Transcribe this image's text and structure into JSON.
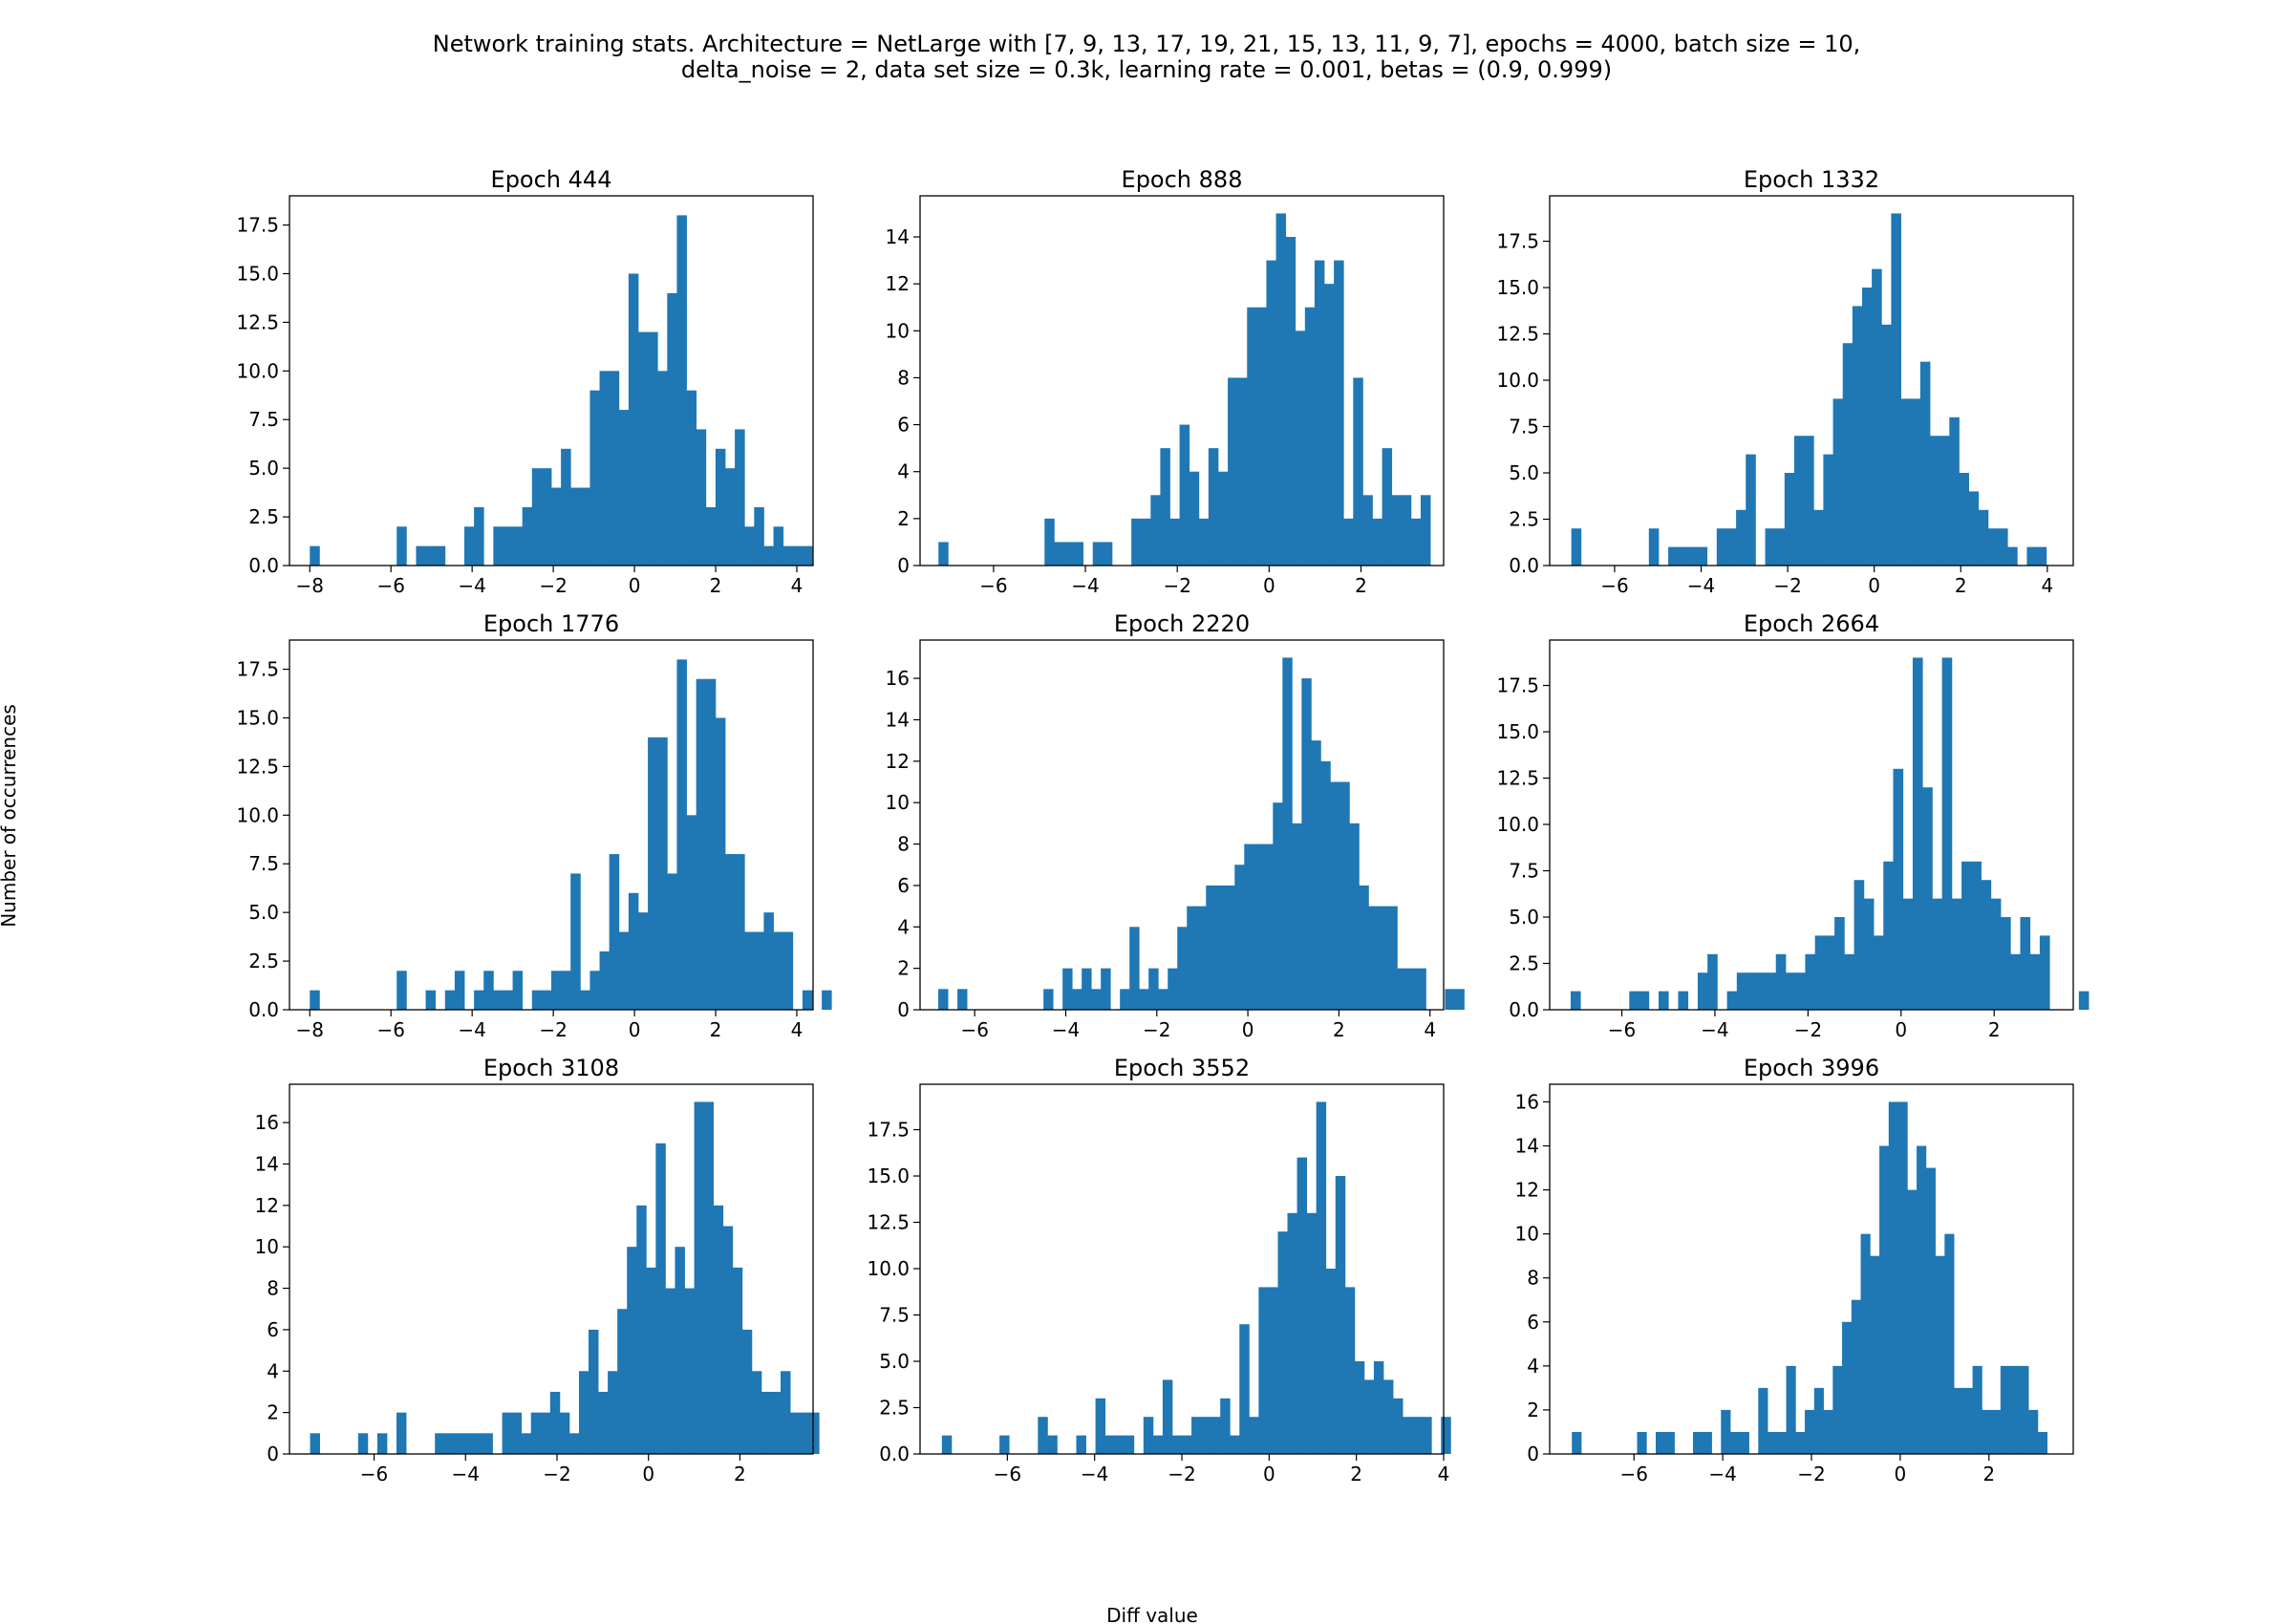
{
  "figure": {
    "title_line1": "Network training stats. Architecture = NetLarge with [7, 9, 13, 17, 19, 21, 15, 13, 11, 9, 7], epochs = 4000, batch size = 10,",
    "title_line2": "delta_noise = 2, data set size = 0.3k, learning rate = 0.001, betas = (0.9, 0.999)",
    "xlabel": "Diff value",
    "ylabel": "Number of occurrences",
    "bar_color": "#1f77b4"
  },
  "chart_data": [
    {
      "type": "bar",
      "title": "Epoch 444",
      "xlim": [
        -8.5,
        4.4
      ],
      "ylim": [
        0,
        19
      ],
      "xticks": [
        -8,
        -6,
        -4,
        -2,
        0,
        2,
        4
      ],
      "yticks": [
        0.0,
        2.5,
        5.0,
        7.5,
        10.0,
        12.5,
        15.0,
        17.5
      ],
      "ytick_labels": [
        "0.0",
        "2.5",
        "5.0",
        "7.5",
        "10.0",
        "12.5",
        "15.0",
        "17.5"
      ],
      "bin_start": -8.0,
      "bin_width": 0.238,
      "counts": [
        1,
        0,
        0,
        0,
        0,
        0,
        0,
        0,
        0,
        2,
        0,
        1,
        1,
        1,
        0,
        0,
        2,
        3,
        0,
        2,
        2,
        2,
        3,
        5,
        5,
        4,
        6,
        4,
        4,
        9,
        10,
        10,
        8,
        15,
        12,
        12,
        10,
        14,
        18,
        9,
        7,
        3,
        6,
        5,
        7,
        2,
        3,
        1,
        2,
        1,
        1,
        1
      ]
    },
    {
      "type": "bar",
      "title": "Epoch 888",
      "xlim": [
        -7.6,
        3.8
      ],
      "ylim": [
        0,
        15.75
      ],
      "xticks": [
        -6,
        -4,
        -2,
        0,
        2
      ],
      "yticks": [
        0,
        2,
        4,
        6,
        8,
        10,
        12,
        14
      ],
      "ytick_labels": [
        "0",
        "2",
        "4",
        "6",
        "8",
        "10",
        "12",
        "14"
      ],
      "bin_start": -7.2,
      "bin_width": 0.21,
      "counts": [
        1,
        0,
        0,
        0,
        0,
        0,
        0,
        0,
        0,
        0,
        0,
        2,
        1,
        1,
        1,
        0,
        1,
        1,
        0,
        0,
        2,
        2,
        3,
        5,
        2,
        6,
        4,
        2,
        5,
        4,
        8,
        8,
        11,
        11,
        13,
        15,
        14,
        10,
        11,
        13,
        12,
        13,
        2,
        8,
        3,
        2,
        5,
        3,
        3,
        2,
        3
      ]
    },
    {
      "type": "bar",
      "title": "Epoch 1332",
      "xlim": [
        -7.5,
        4.6
      ],
      "ylim": [
        0,
        19.95
      ],
      "xticks": [
        -6,
        -4,
        -2,
        0,
        2,
        4
      ],
      "yticks": [
        0.0,
        2.5,
        5.0,
        7.5,
        10.0,
        12.5,
        15.0,
        17.5
      ],
      "ytick_labels": [
        "0.0",
        "2.5",
        "5.0",
        "7.5",
        "10.0",
        "12.5",
        "15.0",
        "17.5"
      ],
      "bin_start": -7.0,
      "bin_width": 0.224,
      "counts": [
        2,
        0,
        0,
        0,
        0,
        0,
        0,
        0,
        2,
        0,
        1,
        1,
        1,
        1,
        0,
        2,
        2,
        3,
        6,
        0,
        2,
        2,
        5,
        7,
        7,
        3,
        6,
        9,
        12,
        14,
        15,
        16,
        13,
        19,
        9,
        9,
        11,
        7,
        7,
        8,
        5,
        4,
        3,
        2,
        2,
        1,
        0,
        1,
        1
      ]
    },
    {
      "type": "bar",
      "title": "Epoch 1776",
      "xlim": [
        -8.5,
        4.4
      ],
      "ylim": [
        0,
        19
      ],
      "xticks": [
        -8,
        -6,
        -4,
        -2,
        0,
        2,
        4
      ],
      "yticks": [
        0.0,
        2.5,
        5.0,
        7.5,
        10.0,
        12.5,
        15.0,
        17.5
      ],
      "ytick_labels": [
        "0.0",
        "2.5",
        "5.0",
        "7.5",
        "10.0",
        "12.5",
        "15.0",
        "17.5"
      ],
      "bin_start": -8.0,
      "bin_width": 0.238,
      "counts": [
        1,
        0,
        0,
        0,
        0,
        0,
        0,
        0,
        0,
        2,
        0,
        0,
        1,
        0,
        1,
        2,
        0,
        1,
        2,
        1,
        1,
        2,
        0,
        1,
        1,
        2,
        2,
        7,
        1,
        2,
        3,
        8,
        4,
        6,
        5,
        14,
        14,
        7,
        18,
        10,
        17,
        17,
        15,
        8,
        8,
        4,
        4,
        5,
        4,
        4,
        0,
        1,
        0,
        1
      ]
    },
    {
      "type": "bar",
      "title": "Epoch 2220",
      "xlim": [
        -7.2,
        4.3
      ],
      "ylim": [
        0,
        17.85
      ],
      "xticks": [
        -6,
        -4,
        -2,
        0,
        2,
        4
      ],
      "yticks": [
        0,
        2,
        4,
        6,
        8,
        10,
        12,
        14,
        16
      ],
      "ytick_labels": [
        "0",
        "2",
        "4",
        "6",
        "8",
        "10",
        "12",
        "14",
        "16"
      ],
      "bin_start": -6.8,
      "bin_width": 0.21,
      "counts": [
        1,
        0,
        1,
        0,
        0,
        0,
        0,
        0,
        0,
        0,
        0,
        1,
        0,
        2,
        1,
        2,
        1,
        2,
        0,
        1,
        4,
        1,
        2,
        1,
        2,
        4,
        5,
        5,
        6,
        6,
        6,
        7,
        8,
        8,
        8,
        10,
        17,
        9,
        16,
        13,
        12,
        11,
        11,
        9,
        6,
        5,
        5,
        5,
        2,
        2,
        2,
        0,
        0,
        1,
        1
      ]
    },
    {
      "type": "bar",
      "title": "Epoch 2664",
      "xlim": [
        -7.55,
        3.7
      ],
      "ylim": [
        0,
        19.95
      ],
      "xticks": [
        -6,
        -4,
        -2,
        0,
        2
      ],
      "yticks": [
        0.0,
        2.5,
        5.0,
        7.5,
        10.0,
        12.5,
        15.0,
        17.5
      ],
      "ytick_labels": [
        "0.0",
        "2.5",
        "5.0",
        "7.5",
        "10.0",
        "12.5",
        "15.0",
        "17.5"
      ],
      "bin_start": -7.1,
      "bin_width": 0.21,
      "counts": [
        1,
        0,
        0,
        0,
        0,
        0,
        1,
        1,
        0,
        1,
        0,
        1,
        0,
        2,
        3,
        0,
        1,
        2,
        2,
        2,
        2,
        3,
        2,
        2,
        3,
        4,
        4,
        5,
        3,
        7,
        6,
        4,
        8,
        13,
        6,
        19,
        12,
        6,
        19,
        6,
        8,
        8,
        7,
        6,
        5,
        3,
        5,
        3,
        4,
        0,
        0,
        0,
        1
      ]
    },
    {
      "type": "bar",
      "title": "Epoch 3108",
      "xlim": [
        -7.85,
        3.6
      ],
      "ylim": [
        0,
        17.85
      ],
      "xticks": [
        -6,
        -4,
        -2,
        0,
        2
      ],
      "yticks": [
        0,
        2,
        4,
        6,
        8,
        10,
        12,
        14,
        16
      ],
      "ytick_labels": [
        "0",
        "2",
        "4",
        "6",
        "8",
        "10",
        "12",
        "14",
        "16"
      ],
      "bin_start": -7.4,
      "bin_width": 0.21,
      "counts": [
        1,
        0,
        0,
        0,
        0,
        1,
        0,
        1,
        0,
        2,
        0,
        0,
        0,
        1,
        1,
        1,
        1,
        1,
        1,
        0,
        2,
        2,
        1,
        2,
        2,
        3,
        2,
        1,
        4,
        6,
        3,
        4,
        7,
        10,
        12,
        9,
        15,
        8,
        10,
        8,
        17,
        17,
        12,
        11,
        9,
        6,
        4,
        3,
        3,
        4,
        2,
        2,
        2
      ]
    },
    {
      "type": "bar",
      "title": "Epoch 3552",
      "xlim": [
        -8.0,
        4.0
      ],
      "ylim": [
        0,
        19.95
      ],
      "xticks": [
        -6,
        -4,
        -2,
        0,
        2,
        4
      ],
      "yticks": [
        0.0,
        2.5,
        5.0,
        7.5,
        10.0,
        12.5,
        15.0,
        17.5
      ],
      "ytick_labels": [
        "0.0",
        "2.5",
        "5.0",
        "7.5",
        "10.0",
        "12.5",
        "15.0",
        "17.5"
      ],
      "bin_start": -7.5,
      "bin_width": 0.22,
      "counts": [
        1,
        0,
        0,
        0,
        0,
        0,
        1,
        0,
        0,
        0,
        2,
        1,
        0,
        0,
        1,
        0,
        3,
        1,
        1,
        1,
        0,
        2,
        1,
        4,
        1,
        1,
        2,
        2,
        2,
        3,
        1,
        7,
        2,
        9,
        9,
        12,
        13,
        16,
        13,
        19,
        10,
        15,
        9,
        5,
        4,
        5,
        4,
        3,
        2,
        2,
        2,
        0,
        2
      ]
    },
    {
      "type": "bar",
      "title": "Epoch 3996",
      "xlim": [
        -7.9,
        3.9
      ],
      "ylim": [
        0,
        16.8
      ],
      "xticks": [
        -6,
        -4,
        -2,
        0,
        2
      ],
      "yticks": [
        0,
        2,
        4,
        6,
        8,
        10,
        12,
        14,
        16
      ],
      "ytick_labels": [
        "0",
        "2",
        "4",
        "6",
        "8",
        "10",
        "12",
        "14",
        "16"
      ],
      "bin_start": -7.4,
      "bin_width": 0.21,
      "counts": [
        1,
        0,
        0,
        0,
        0,
        0,
        0,
        1,
        0,
        1,
        1,
        0,
        0,
        1,
        1,
        0,
        2,
        1,
        1,
        0,
        3,
        1,
        1,
        4,
        1,
        2,
        3,
        2,
        4,
        6,
        7,
        10,
        9,
        14,
        16,
        16,
        12,
        14,
        13,
        9,
        10,
        3,
        3,
        4,
        2,
        2,
        4,
        4,
        4,
        2,
        1
      ]
    }
  ]
}
